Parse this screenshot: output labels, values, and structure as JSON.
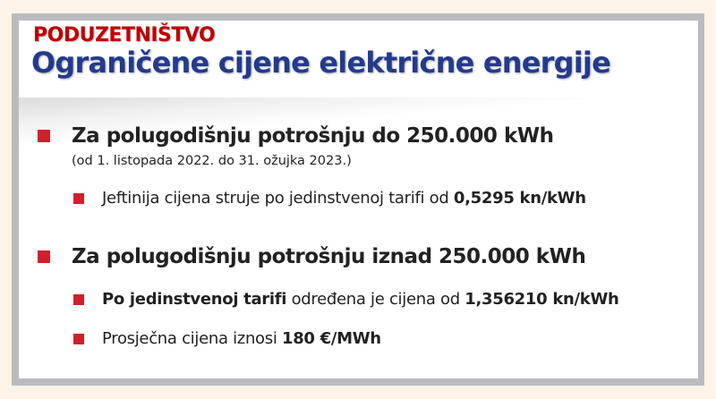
{
  "slide": {
    "kicker": "PODUZETNIŠTVO",
    "title": "Ograničene cijene električne energije",
    "bullets": [
      {
        "text": "Za polugodišnju potrošnju do 250.000 kWh",
        "note": "(od 1. listopada 2022. do 31. ožujka 2023.)",
        "sub": [
          {
            "pre": "Jeftinija cijena struje po jedinstvenoj tarifi od ",
            "bold": "0,5295 kn/kWh"
          }
        ]
      },
      {
        "text": "Za polugodišnju potrošnju iznad 250.000 kWh",
        "sub": [
          {
            "bold_lead": "Po jedinstvenoj tarifi",
            "mid": " određena je cijena od ",
            "bold": "1,356210 kn/kWh"
          },
          {
            "pre": "Prosječna cijena iznosi ",
            "bold": "180 €/MWh"
          }
        ]
      }
    ]
  },
  "colors": {
    "kicker": "#c00000",
    "title": "#243a8c",
    "bullet": "#d0202c",
    "frame": "#b9bbbf",
    "background": "#fdf3e6"
  }
}
